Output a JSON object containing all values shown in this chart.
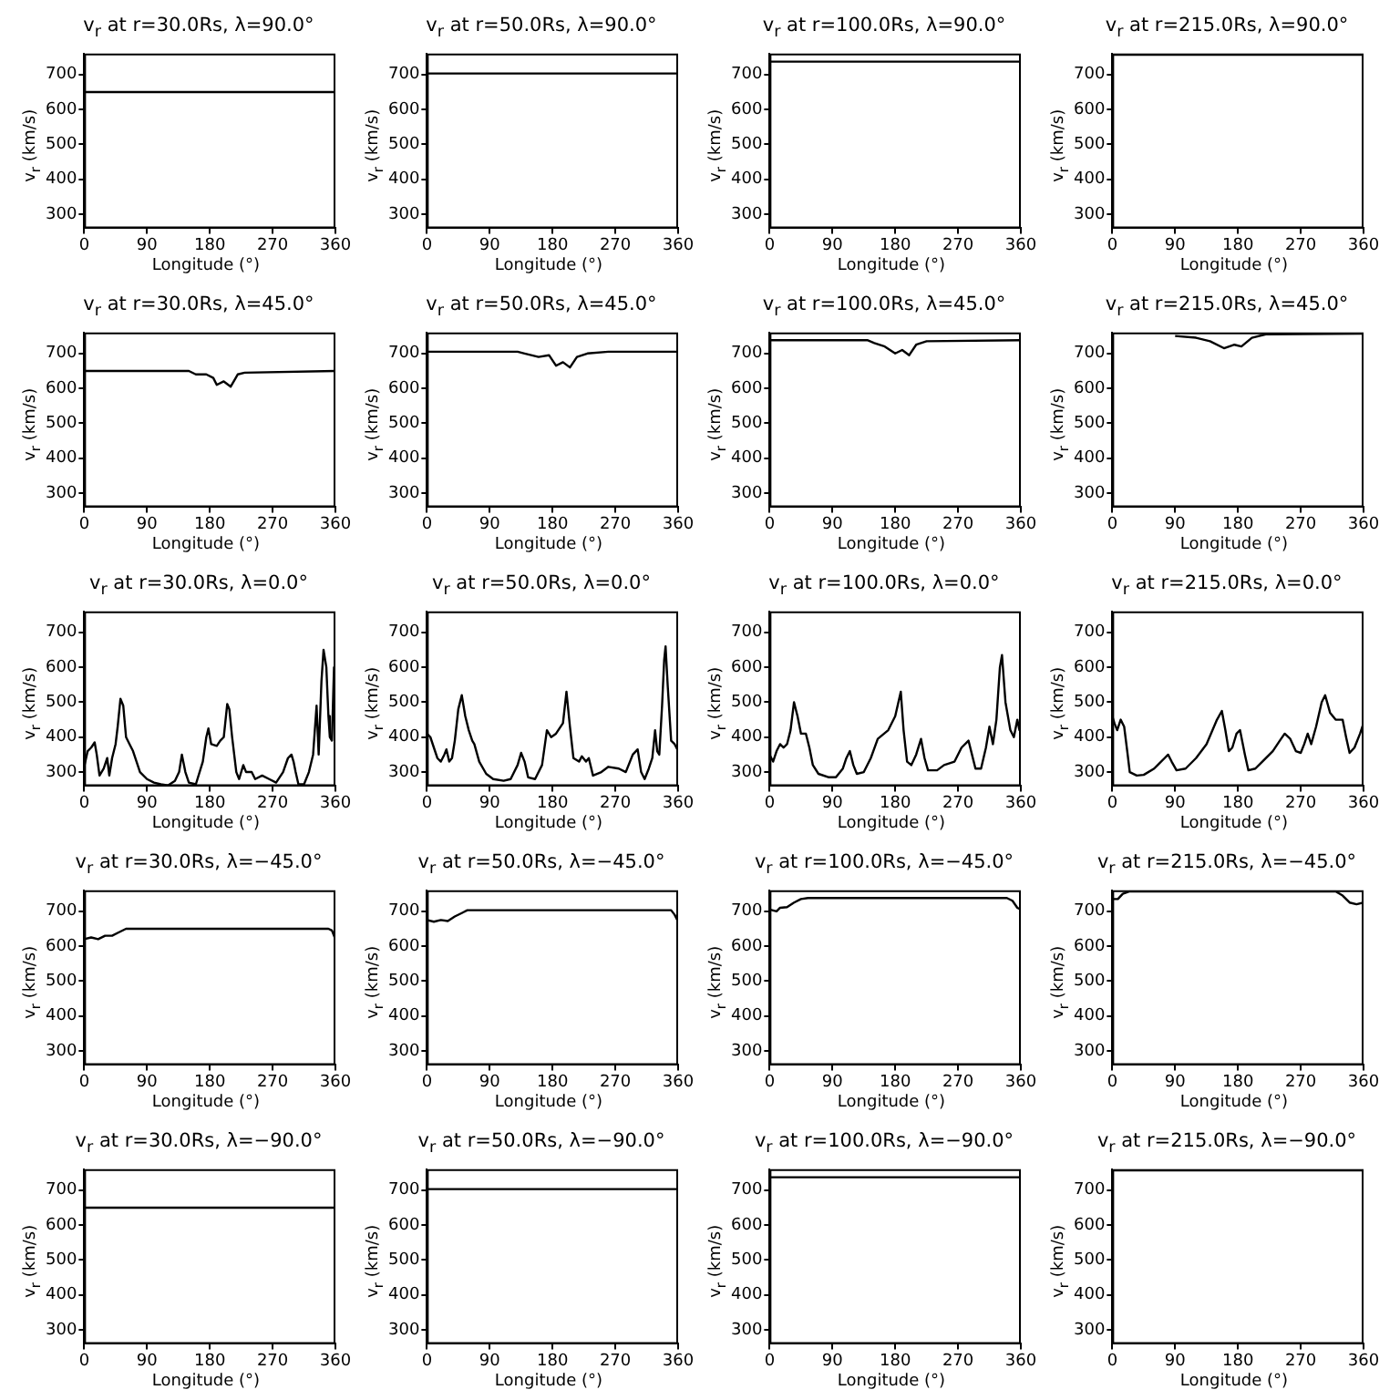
{
  "chart_data": [
    {
      "type": "line",
      "title": "v$_{r}$ at r=30.0Rs, λ=90.0°",
      "xlabel": "Longitude (°)",
      "ylabel": "v$_{r}$ (km/s)",
      "x": [
        0,
        360
      ],
      "values": [
        650,
        650
      ],
      "color": "#000000",
      "xlim": [
        0,
        360
      ],
      "xticks": [
        0,
        90,
        180,
        270,
        360
      ],
      "ylim": [
        260,
        760
      ],
      "yticks": [
        300,
        400,
        500,
        600,
        700
      ]
    },
    {
      "type": "line",
      "title": "v$_{r}$ at r=50.0Rs, λ=90.0°",
      "xlabel": "Longitude (°)",
      "ylabel": "v$_{r}$ (km/s)",
      "x": [
        0,
        360
      ],
      "values": [
        703,
        703
      ],
      "color": "#000000",
      "xlim": [
        0,
        360
      ],
      "xticks": [
        0,
        90,
        180,
        270,
        360
      ],
      "ylim": [
        260,
        760
      ],
      "yticks": [
        300,
        400,
        500,
        600,
        700
      ]
    },
    {
      "type": "line",
      "title": "v$_{r}$ at r=100.0Rs, λ=90.0°",
      "xlabel": "Longitude (°)",
      "ylabel": "v$_{r}$ (km/s)",
      "x": [
        0,
        360
      ],
      "values": [
        737,
        737
      ],
      "color": "#000000",
      "xlim": [
        0,
        360
      ],
      "xticks": [
        0,
        90,
        180,
        270,
        360
      ],
      "ylim": [
        260,
        760
      ],
      "yticks": [
        300,
        400,
        500,
        600,
        700
      ]
    },
    {
      "type": "line",
      "title": "v$_{r}$ at r=215.0Rs, λ=90.0°",
      "xlabel": "Longitude (°)",
      "ylabel": "v$_{r}$ (km/s)",
      "x": [
        0,
        360
      ],
      "values": [
        757,
        757
      ],
      "color": "#000000",
      "xlim": [
        0,
        360
      ],
      "xticks": [
        0,
        90,
        180,
        270,
        360
      ],
      "ylim": [
        260,
        760
      ],
      "yticks": [
        300,
        400,
        500,
        600,
        700
      ]
    },
    {
      "type": "line",
      "title": "v$_{r}$ at r=30.0Rs, λ=45.0°",
      "xlabel": "Longitude (°)",
      "ylabel": "v$_{r}$ (km/s)",
      "x": [
        0,
        150,
        160,
        175,
        185,
        190,
        200,
        210,
        220,
        230,
        360
      ],
      "values": [
        650,
        650,
        640,
        640,
        630,
        610,
        620,
        605,
        640,
        645,
        650
      ],
      "color": "#000000",
      "xlim": [
        0,
        360
      ],
      "xticks": [
        0,
        90,
        180,
        270,
        360
      ],
      "ylim": [
        260,
        760
      ],
      "yticks": [
        300,
        400,
        500,
        600,
        700
      ]
    },
    {
      "type": "line",
      "title": "v$_{r}$ at r=50.0Rs, λ=45.0°",
      "xlabel": "Longitude (°)",
      "ylabel": "v$_{r}$ (km/s)",
      "x": [
        0,
        130,
        140,
        160,
        175,
        185,
        195,
        205,
        215,
        230,
        260,
        360
      ],
      "values": [
        705,
        705,
        700,
        690,
        695,
        665,
        675,
        660,
        690,
        700,
        705,
        705
      ],
      "color": "#000000",
      "xlim": [
        0,
        360
      ],
      "xticks": [
        0,
        90,
        180,
        270,
        360
      ],
      "ylim": [
        260,
        760
      ],
      "yticks": [
        300,
        400,
        500,
        600,
        700
      ]
    },
    {
      "type": "line",
      "title": "v$_{r}$ at r=100.0Rs, λ=45.0°",
      "xlabel": "Longitude (°)",
      "ylabel": "v$_{r}$ (km/s)",
      "x": [
        0,
        140,
        150,
        165,
        180,
        190,
        200,
        210,
        225,
        360
      ],
      "values": [
        738,
        738,
        730,
        720,
        700,
        710,
        695,
        725,
        735,
        738
      ],
      "color": "#000000",
      "xlim": [
        0,
        360
      ],
      "xticks": [
        0,
        90,
        180,
        270,
        360
      ],
      "ylim": [
        260,
        760
      ],
      "yticks": [
        300,
        400,
        500,
        600,
        700
      ]
    },
    {
      "type": "line",
      "title": "v$_{r}$ at r=215.0Rs, λ=45.0°",
      "xlabel": "Longitude (°)",
      "ylabel": "v$_{r}$ (km/s)",
      "x": [
        90,
        120,
        140,
        160,
        175,
        185,
        200,
        220,
        360
      ],
      "values": [
        750,
        745,
        735,
        715,
        725,
        720,
        745,
        755,
        757
      ],
      "color": "#000000",
      "xlim": [
        0,
        360
      ],
      "xticks": [
        0,
        90,
        180,
        270,
        360
      ],
      "ylim": [
        260,
        760
      ],
      "yticks": [
        300,
        400,
        500,
        600,
        700
      ]
    },
    {
      "type": "line",
      "title": "v$_{r}$ at r=30.0Rs, λ=0.0°",
      "xlabel": "Longitude (°)",
      "ylabel": "v$_{r}$ (km/s)",
      "x": [
        0,
        5,
        10,
        15,
        18,
        22,
        28,
        33,
        36,
        40,
        45,
        48,
        52,
        56,
        60,
        65,
        70,
        75,
        80,
        90,
        100,
        110,
        120,
        130,
        136,
        140,
        145,
        150,
        160,
        170,
        175,
        178,
        182,
        190,
        195,
        200,
        205,
        208,
        212,
        218,
        222,
        228,
        232,
        240,
        245,
        255,
        265,
        275,
        285,
        292,
        297,
        300,
        303,
        307,
        315,
        322,
        328,
        333,
        336,
        340,
        343,
        347,
        350,
        352,
        355,
        358,
        360
      ],
      "values": [
        315,
        360,
        370,
        385,
        350,
        290,
        310,
        340,
        290,
        340,
        380,
        430,
        510,
        490,
        400,
        380,
        360,
        330,
        300,
        280,
        270,
        265,
        262,
        275,
        300,
        350,
        300,
        270,
        265,
        330,
        400,
        425,
        380,
        375,
        390,
        400,
        495,
        480,
        400,
        300,
        280,
        320,
        300,
        300,
        280,
        290,
        280,
        270,
        300,
        340,
        350,
        330,
        300,
        265,
        265,
        300,
        350,
        490,
        350,
        560,
        650,
        600,
        460,
        400,
        390,
        600,
        360
      ],
      "color": "#000000",
      "xlim": [
        0,
        360
      ],
      "xticks": [
        0,
        90,
        180,
        270,
        360
      ],
      "ylim": [
        260,
        760
      ],
      "yticks": [
        300,
        400,
        500,
        600,
        700
      ]
    },
    {
      "type": "line",
      "title": "v$_{r}$ at r=50.0Rs, λ=0.0°",
      "xlabel": "Longitude (°)",
      "ylabel": "v$_{r}$ (km/s)",
      "x": [
        0,
        5,
        10,
        15,
        20,
        25,
        28,
        32,
        36,
        40,
        45,
        50,
        55,
        60,
        65,
        68,
        75,
        85,
        95,
        110,
        120,
        130,
        135,
        140,
        145,
        155,
        165,
        172,
        178,
        185,
        195,
        200,
        205,
        210,
        218,
        222,
        228,
        232,
        238,
        250,
        260,
        275,
        285,
        295,
        302,
        307,
        312,
        318,
        323,
        327,
        330,
        333,
        337,
        340,
        342,
        345,
        350,
        355,
        360
      ],
      "values": [
        410,
        400,
        370,
        340,
        330,
        350,
        365,
        330,
        340,
        390,
        480,
        520,
        460,
        420,
        390,
        380,
        330,
        295,
        280,
        275,
        280,
        320,
        355,
        330,
        285,
        280,
        320,
        420,
        400,
        410,
        440,
        530,
        430,
        340,
        330,
        345,
        330,
        340,
        290,
        300,
        315,
        310,
        300,
        350,
        365,
        300,
        280,
        310,
        340,
        420,
        360,
        350,
        490,
        620,
        660,
        550,
        390,
        380,
        360
      ],
      "color": "#000000",
      "xlim": [
        0,
        360
      ],
      "xticks": [
        0,
        90,
        180,
        270,
        360
      ],
      "ylim": [
        260,
        760
      ],
      "yticks": [
        300,
        400,
        500,
        600,
        700
      ]
    },
    {
      "type": "line",
      "title": "v$_{r}$ at r=100.0Rs, λ=0.0°",
      "xlabel": "Longitude (°)",
      "ylabel": "v$_{r}$ (km/s)",
      "x": [
        0,
        5,
        10,
        15,
        20,
        25,
        30,
        35,
        40,
        45,
        52,
        57,
        62,
        70,
        85,
        95,
        105,
        110,
        115,
        120,
        125,
        135,
        145,
        155,
        170,
        180,
        188,
        192,
        197,
        203,
        210,
        217,
        222,
        227,
        240,
        250,
        265,
        275,
        285,
        290,
        295,
        303,
        310,
        315,
        320,
        325,
        330,
        333,
        338,
        345,
        350,
        355,
        358,
        360
      ],
      "values": [
        350,
        330,
        360,
        380,
        370,
        380,
        420,
        500,
        460,
        410,
        410,
        370,
        320,
        295,
        285,
        285,
        310,
        340,
        360,
        320,
        295,
        300,
        340,
        395,
        420,
        460,
        530,
        420,
        330,
        320,
        350,
        395,
        340,
        305,
        305,
        320,
        330,
        370,
        390,
        350,
        310,
        310,
        370,
        430,
        380,
        450,
        600,
        635,
        500,
        420,
        400,
        450,
        420,
        440
      ],
      "color": "#000000",
      "xlim": [
        0,
        360
      ],
      "xticks": [
        0,
        90,
        180,
        270,
        360
      ],
      "ylim": [
        260,
        760
      ],
      "yticks": [
        300,
        400,
        500,
        600,
        700
      ]
    },
    {
      "type": "line",
      "title": "v$_{r}$ at r=215.0Rs, λ=0.0°",
      "xlabel": "Longitude (°)",
      "ylabel": "v$_{r}$ (km/s)",
      "x": [
        0,
        3,
        7,
        12,
        17,
        22,
        25,
        35,
        45,
        60,
        75,
        80,
        85,
        92,
        105,
        120,
        135,
        150,
        157,
        162,
        167,
        172,
        178,
        183,
        190,
        195,
        205,
        215,
        230,
        240,
        247,
        255,
        263,
        270,
        275,
        280,
        285,
        292,
        300,
        305,
        312,
        320,
        330,
        335,
        340,
        347,
        355,
        360
      ],
      "values": [
        460,
        440,
        420,
        450,
        430,
        350,
        300,
        290,
        292,
        310,
        340,
        350,
        330,
        305,
        310,
        340,
        380,
        450,
        475,
        420,
        360,
        370,
        410,
        420,
        350,
        305,
        310,
        330,
        360,
        390,
        410,
        395,
        360,
        355,
        380,
        410,
        380,
        430,
        500,
        520,
        470,
        450,
        450,
        400,
        355,
        370,
        410,
        440
      ],
      "color": "#000000",
      "xlim": [
        0,
        360
      ],
      "xticks": [
        0,
        90,
        180,
        270,
        360
      ],
      "ylim": [
        260,
        760
      ],
      "yticks": [
        300,
        400,
        500,
        600,
        700
      ]
    },
    {
      "type": "line",
      "title": "v$_{r}$ at r=30.0Rs, λ=−45.0°",
      "xlabel": "Longitude (°)",
      "ylabel": "v$_{r}$ (km/s)",
      "x": [
        0,
        10,
        20,
        30,
        40,
        50,
        60,
        350,
        355,
        360
      ],
      "values": [
        620,
        625,
        620,
        630,
        630,
        640,
        650,
        650,
        645,
        620
      ],
      "color": "#000000",
      "xlim": [
        0,
        360
      ],
      "xticks": [
        0,
        90,
        180,
        270,
        360
      ],
      "ylim": [
        260,
        760
      ],
      "yticks": [
        300,
        400,
        500,
        600,
        700
      ]
    },
    {
      "type": "line",
      "title": "v$_{r}$ at r=50.0Rs, λ=−45.0°",
      "xlabel": "Longitude (°)",
      "ylabel": "v$_{r}$ (km/s)",
      "x": [
        0,
        10,
        20,
        30,
        40,
        50,
        58,
        350,
        355,
        360
      ],
      "values": [
        675,
        670,
        675,
        672,
        685,
        695,
        703,
        703,
        690,
        670
      ],
      "color": "#000000",
      "xlim": [
        0,
        360
      ],
      "xticks": [
        0,
        90,
        180,
        270,
        360
      ],
      "ylim": [
        260,
        760
      ],
      "yticks": [
        300,
        400,
        500,
        600,
        700
      ]
    },
    {
      "type": "line",
      "title": "v$_{r}$ at r=100.0Rs, λ=−45.0°",
      "xlabel": "Longitude (°)",
      "ylabel": "v$_{r}$ (km/s)",
      "x": [
        0,
        10,
        15,
        25,
        35,
        45,
        55,
        340,
        348,
        355,
        360
      ],
      "values": [
        705,
        700,
        710,
        712,
        725,
        735,
        738,
        738,
        730,
        710,
        705
      ],
      "color": "#000000",
      "xlim": [
        0,
        360
      ],
      "xticks": [
        0,
        90,
        180,
        270,
        360
      ],
      "ylim": [
        260,
        760
      ],
      "yticks": [
        300,
        400,
        500,
        600,
        700
      ]
    },
    {
      "type": "line",
      "title": "v$_{r}$ at r=215.0Rs, λ=−45.0°",
      "xlabel": "Longitude (°)",
      "ylabel": "v$_{r}$ (km/s)",
      "x": [
        0,
        8,
        15,
        25,
        320,
        330,
        340,
        350,
        360
      ],
      "values": [
        735,
        735,
        750,
        757,
        757,
        745,
        725,
        720,
        725
      ],
      "color": "#000000",
      "xlim": [
        0,
        360
      ],
      "xticks": [
        0,
        90,
        180,
        270,
        360
      ],
      "ylim": [
        260,
        760
      ],
      "yticks": [
        300,
        400,
        500,
        600,
        700
      ]
    },
    {
      "type": "line",
      "title": "v$_{r}$ at r=30.0Rs, λ=−90.0°",
      "xlabel": "Longitude (°)",
      "ylabel": "v$_{r}$ (km/s)",
      "x": [
        0,
        360
      ],
      "values": [
        650,
        650
      ],
      "color": "#000000",
      "xlim": [
        0,
        360
      ],
      "xticks": [
        0,
        90,
        180,
        270,
        360
      ],
      "ylim": [
        260,
        760
      ],
      "yticks": [
        300,
        400,
        500,
        600,
        700
      ]
    },
    {
      "type": "line",
      "title": "v$_{r}$ at r=50.0Rs, λ=−90.0°",
      "xlabel": "Longitude (°)",
      "ylabel": "v$_{r}$ (km/s)",
      "x": [
        0,
        360
      ],
      "values": [
        703,
        703
      ],
      "color": "#000000",
      "xlim": [
        0,
        360
      ],
      "xticks": [
        0,
        90,
        180,
        270,
        360
      ],
      "ylim": [
        260,
        760
      ],
      "yticks": [
        300,
        400,
        500,
        600,
        700
      ]
    },
    {
      "type": "line",
      "title": "v$_{r}$ at r=100.0Rs, λ=−90.0°",
      "xlabel": "Longitude (°)",
      "ylabel": "v$_{r}$ (km/s)",
      "x": [
        0,
        360
      ],
      "values": [
        737,
        737
      ],
      "color": "#000000",
      "xlim": [
        0,
        360
      ],
      "xticks": [
        0,
        90,
        180,
        270,
        360
      ],
      "ylim": [
        260,
        760
      ],
      "yticks": [
        300,
        400,
        500,
        600,
        700
      ]
    },
    {
      "type": "line",
      "title": "v$_{r}$ at r=215.0Rs, λ=−90.0°",
      "xlabel": "Longitude (°)",
      "ylabel": "v$_{r}$ (km/s)",
      "x": [
        0,
        360
      ],
      "values": [
        757,
        757
      ],
      "color": "#000000",
      "xlim": [
        0,
        360
      ],
      "xticks": [
        0,
        90,
        180,
        270,
        360
      ],
      "ylim": [
        260,
        760
      ],
      "yticks": [
        300,
        400,
        500,
        600,
        700
      ]
    }
  ]
}
